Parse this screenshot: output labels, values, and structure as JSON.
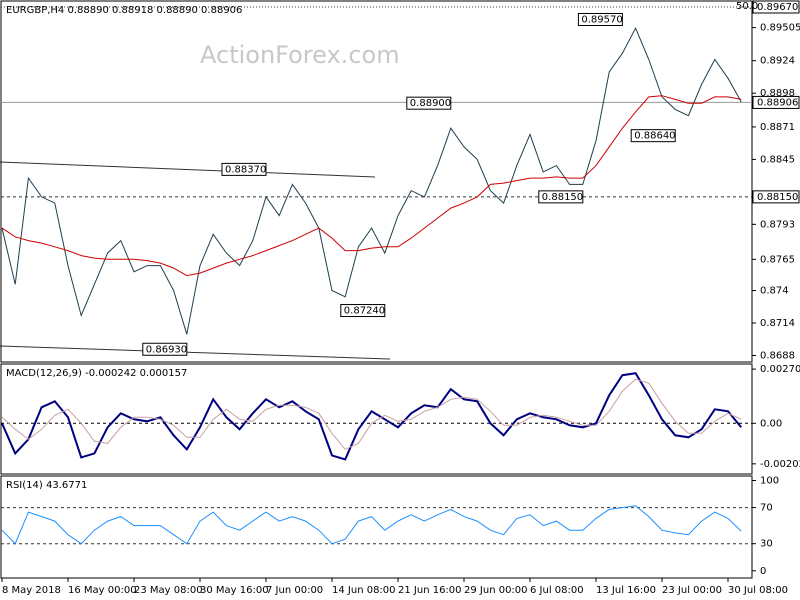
{
  "watermark": "ActionForex.com",
  "chart_data": [
    {
      "type": "line",
      "title": "EURGBP,H4  0.88890 0.88918 0.88890 0.88906",
      "categories": [
        "8 May 2018",
        null,
        null,
        null,
        null,
        "16 May 00:00",
        null,
        null,
        null,
        null,
        "23 May 08:00",
        null,
        null,
        null,
        null,
        "30 May 16:00",
        null,
        null,
        null,
        null,
        "7 Jun 00:00",
        null,
        null,
        null,
        null,
        "14 Jun 08:00",
        null,
        null,
        null,
        null,
        "21 Jun 16:00",
        null,
        null,
        null,
        null,
        "29 Jun 00:00",
        null,
        null,
        null,
        null,
        "6 Jul 08:00",
        null,
        null,
        null,
        null,
        "13 Jul 16:00",
        null,
        null,
        null,
        null,
        "23 Jul 00:00",
        null,
        null,
        null,
        null,
        "30 Jul 08:00",
        null
      ],
      "series": [
        {
          "name": "EURGBP",
          "color": "#1f3f4f",
          "values": [
            0.879,
            0.8745,
            0.883,
            0.8815,
            0.881,
            0.876,
            0.872,
            0.8745,
            0.877,
            0.878,
            0.8755,
            0.876,
            0.876,
            0.874,
            0.8705,
            0.876,
            0.8785,
            0.877,
            0.876,
            0.878,
            0.8815,
            0.88,
            0.8825,
            0.881,
            0.879,
            0.874,
            0.8735,
            0.8775,
            0.879,
            0.877,
            0.88,
            0.882,
            0.8815,
            0.884,
            0.887,
            0.8855,
            0.8845,
            0.882,
            0.881,
            0.884,
            0.8865,
            0.8835,
            0.884,
            0.8825,
            0.8825,
            0.886,
            0.8915,
            0.893,
            0.895,
            0.8925,
            0.8895,
            0.8885,
            0.888,
            0.8905,
            0.8925,
            0.891,
            0.8891
          ]
        },
        {
          "name": "SMA",
          "color": "#cc0000",
          "values": [
            0.879,
            0.8783,
            0.878,
            0.8778,
            0.8775,
            0.8772,
            0.8768,
            0.8766,
            0.8765,
            0.8765,
            0.8765,
            0.8764,
            0.8762,
            0.8758,
            0.8752,
            0.8754,
            0.8758,
            0.8762,
            0.8765,
            0.8768,
            0.8772,
            0.8776,
            0.878,
            0.8785,
            0.879,
            0.8782,
            0.8772,
            0.8772,
            0.8774,
            0.8775,
            0.8775,
            0.8782,
            0.879,
            0.8798,
            0.8806,
            0.881,
            0.8815,
            0.8825,
            0.8826,
            0.8828,
            0.883,
            0.883,
            0.8831,
            0.883,
            0.883,
            0.884,
            0.8855,
            0.887,
            0.8883,
            0.8895,
            0.8896,
            0.8893,
            0.889,
            0.889,
            0.8895,
            0.8895,
            0.8893
          ]
        }
      ],
      "ylim": [
        0.86828,
        0.89718
      ],
      "yticks": [
        0.89505,
        0.8924,
        0.8898,
        0.8871,
        0.8845,
        0.8793,
        0.8765,
        0.874,
        0.8714,
        0.8688
      ],
      "levels": [
        {
          "value": 0.8967,
          "label": "0.89670",
          "note": "50.0",
          "style": "dotted"
        },
        {
          "value": 0.8815,
          "label": "0.88150",
          "style": "dashed"
        },
        {
          "value": 0.88906,
          "label": "0.88906",
          "style": "solid"
        }
      ],
      "annotations": [
        {
          "label": "0.89570",
          "value": 0.8957,
          "x": 47
        },
        {
          "label": "0.88900",
          "value": 0.889,
          "x": 34
        },
        {
          "label": "0.88370",
          "value": 0.8837,
          "x": 20
        },
        {
          "label": "0.88640",
          "value": 0.8864,
          "x": 51
        },
        {
          "label": "0.88150",
          "value": 0.8815,
          "x": 44
        },
        {
          "label": "0.87240",
          "value": 0.8724,
          "x": 29
        },
        {
          "label": "0.86930",
          "value": 0.8693,
          "x": 14
        }
      ]
    },
    {
      "type": "line",
      "title": "MACD(12,26,9) -0.000242 0.000157",
      "series": [
        {
          "name": "MACD",
          "color": "#000080",
          "values": [
            0.0,
            -0.0015,
            -0.0008,
            0.0008,
            0.0011,
            0.0003,
            -0.0017,
            -0.0015,
            -0.0002,
            0.0005,
            0.0002,
            0.0001,
            0.0003,
            -0.0006,
            -0.0013,
            -0.0002,
            0.0012,
            0.0003,
            -0.0003,
            0.0005,
            0.0012,
            0.0008,
            0.0011,
            0.0006,
            0.0002,
            -0.0016,
            -0.0018,
            -0.0003,
            0.0006,
            0.0002,
            -0.0002,
            0.0005,
            0.0009,
            0.0008,
            0.0017,
            0.0012,
            0.0011,
            0.0,
            -0.0006,
            0.0002,
            0.0005,
            0.0003,
            0.0002,
            -0.0001,
            -0.0002,
            0.0,
            0.0014,
            0.0024,
            0.0025,
            0.0014,
            0.0002,
            -0.0006,
            -0.0007,
            -0.0003,
            0.0007,
            0.0006,
            -0.0002
          ]
        },
        {
          "name": "Signal",
          "color": "#c8a0a0",
          "values": [
            0.0003,
            -0.0003,
            -0.0008,
            -0.0003,
            0.0004,
            0.0007,
            0.0,
            -0.0009,
            -0.001,
            -0.0002,
            0.0003,
            0.0003,
            0.0002,
            -0.0001,
            -0.0007,
            -0.0007,
            0.0002,
            0.0007,
            0.0002,
            0.0001,
            0.0007,
            0.0009,
            0.0009,
            0.0008,
            0.0005,
            -0.0005,
            -0.0013,
            -0.001,
            0.0,
            0.0004,
            0.0001,
            0.0002,
            0.0006,
            0.0008,
            0.0012,
            0.0013,
            0.0012,
            0.0006,
            -0.0001,
            -0.0001,
            0.0003,
            0.0004,
            0.0003,
            0.0001,
            -0.0001,
            -0.0001,
            0.0006,
            0.0016,
            0.0022,
            0.002,
            0.001,
            0.0001,
            -0.0005,
            -0.0005,
            0.0001,
            0.0005,
            0.0002
          ]
        }
      ],
      "ylim": [
        -0.00253,
        0.00296
      ],
      "yticks": [
        0.002705,
        {
          "value": 0,
          "label": "0.00"
        },
        -0.002023
      ],
      "zero_line": true
    },
    {
      "type": "line",
      "title": "RSI(14) 43.6771",
      "series": [
        {
          "name": "RSI",
          "color": "#1e90ff",
          "values": [
            45,
            30,
            65,
            60,
            55,
            40,
            30,
            45,
            55,
            60,
            50,
            50,
            50,
            40,
            30,
            55,
            65,
            50,
            45,
            55,
            65,
            55,
            60,
            55,
            45,
            30,
            35,
            55,
            60,
            45,
            55,
            62,
            55,
            62,
            68,
            60,
            55,
            45,
            40,
            58,
            62,
            50,
            55,
            45,
            45,
            58,
            68,
            70,
            72,
            60,
            45,
            42,
            40,
            55,
            65,
            58,
            44
          ]
        }
      ],
      "ylim": [
        -8,
        105
      ],
      "yticks": [
        100,
        70,
        30,
        0
      ],
      "levels": [
        {
          "value": 70,
          "style": "dashed"
        },
        {
          "value": 30,
          "style": "dashed"
        }
      ]
    }
  ]
}
